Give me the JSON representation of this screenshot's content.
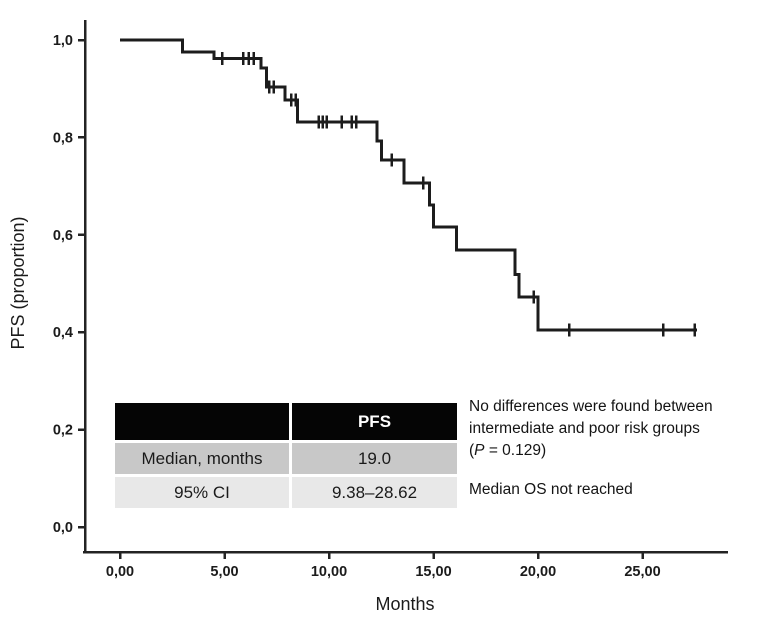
{
  "figure": {
    "background": "#ffffff"
  },
  "chart_data": {
    "type": "line",
    "subtype": "kaplan-meier-step",
    "title": "",
    "xlabel": "Months",
    "ylabel": "PFS (proportion)",
    "xlim": [
      0,
      29
    ],
    "ylim": [
      0,
      1.05
    ],
    "xticks": [
      0,
      5,
      10,
      15,
      20,
      25
    ],
    "xtick_labels": [
      "0,00",
      "5,00",
      "10,00",
      "15,00",
      "20,00",
      "25,00"
    ],
    "yticks": [
      0,
      0.2,
      0.4,
      0.6,
      0.8,
      1.0
    ],
    "ytick_labels": [
      "0,0",
      "0,2",
      "0,4",
      "0,6",
      "0,8",
      "1,0"
    ],
    "grid": false,
    "legend_position": "none",
    "line_color": "#1c1c1c",
    "axis_color": "#232323",
    "series": [
      {
        "name": "PFS",
        "steps": [
          [
            0,
            1.0
          ],
          [
            3.0,
            0.975
          ],
          [
            4.5,
            0.962
          ],
          [
            6.75,
            0.943
          ],
          [
            7.0,
            0.903
          ],
          [
            7.9,
            0.877
          ],
          [
            8.5,
            0.832
          ],
          [
            12.3,
            0.793
          ],
          [
            12.5,
            0.754
          ],
          [
            13.6,
            0.706
          ],
          [
            14.8,
            0.661
          ],
          [
            15.0,
            0.616
          ],
          [
            16.1,
            0.569
          ],
          [
            18.9,
            0.518
          ],
          [
            19.1,
            0.472
          ],
          [
            20.0,
            0.405
          ]
        ],
        "end_time": 27.6,
        "censor_times": [
          4.9,
          5.9,
          6.15,
          6.4,
          7.15,
          7.35,
          8.2,
          8.4,
          9.5,
          9.7,
          9.9,
          10.6,
          11.1,
          11.3,
          13.0,
          14.5,
          19.8,
          21.5,
          26.0,
          27.5
        ]
      }
    ]
  },
  "table": {
    "header": [
      "",
      "PFS"
    ],
    "rows": [
      [
        "Median, months",
        "19.0"
      ],
      [
        "95% CI",
        "9.38–28.62"
      ]
    ],
    "header_bg": "#050505",
    "header_fg": "#ffffff",
    "row_bgs": [
      "#c8c8c8",
      "#e8e8e8"
    ]
  },
  "notes": {
    "line1": "No differences were found between",
    "line2": "intermediate and poor risk groups",
    "p_open": "(",
    "p_symbol": "P",
    "p_rest": " = 0.129)",
    "median_os": "Median OS not reached"
  }
}
